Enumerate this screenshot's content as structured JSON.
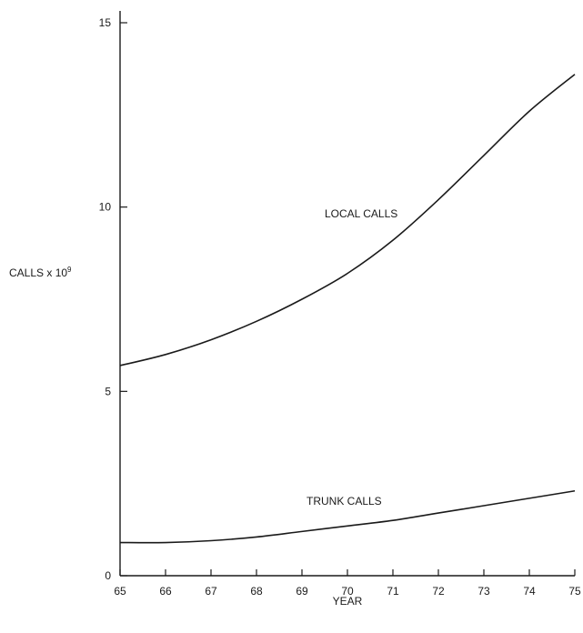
{
  "chart_data": {
    "type": "line",
    "title": "",
    "xlabel": "YEAR",
    "ylabel_main": "CALLS x 10",
    "ylabel_exp": "9",
    "xlim": [
      65,
      75
    ],
    "ylim": [
      0,
      15
    ],
    "x_ticks": [
      "65",
      "66",
      "67",
      "68",
      "69",
      "70",
      "71",
      "72",
      "73",
      "74",
      "75"
    ],
    "y_ticks": [
      "0",
      "5",
      "10",
      "15"
    ],
    "grid": false,
    "series": [
      {
        "name": "LOCAL CALLS",
        "x": [
          65,
          66,
          67,
          68,
          69,
          70,
          71,
          72,
          73,
          74,
          75
        ],
        "y": [
          5.7,
          6.0,
          6.4,
          6.9,
          7.5,
          8.2,
          9.1,
          10.2,
          11.4,
          12.6,
          13.6
        ]
      },
      {
        "name": "TRUNK CALLS",
        "x": [
          65,
          66,
          67,
          68,
          69,
          70,
          71,
          72,
          73,
          74,
          75
        ],
        "y": [
          0.9,
          0.9,
          0.95,
          1.05,
          1.2,
          1.35,
          1.5,
          1.7,
          1.9,
          2.1,
          2.3
        ]
      }
    ]
  }
}
